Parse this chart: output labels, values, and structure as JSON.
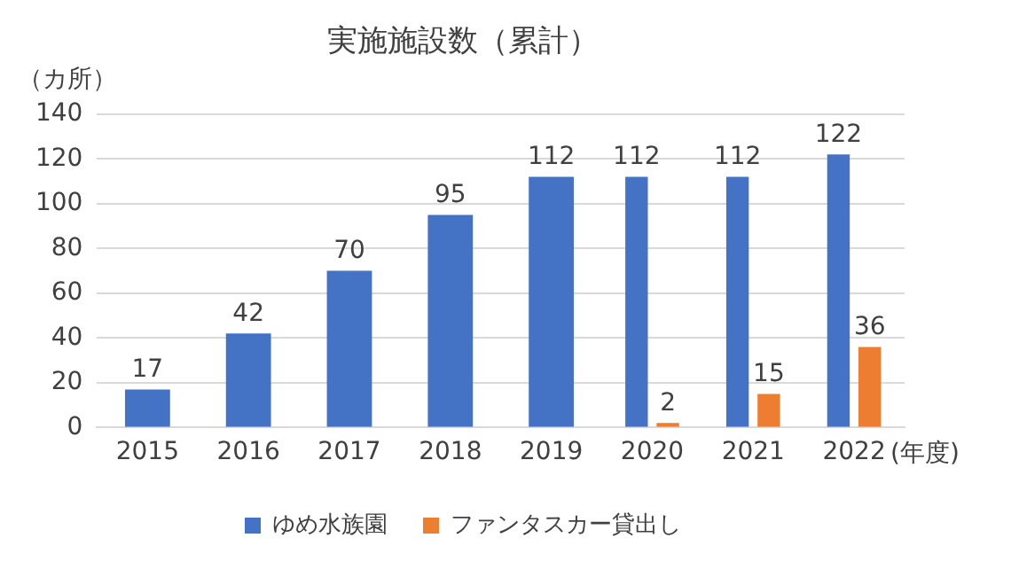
{
  "chart_data": {
    "type": "bar",
    "title": "実施施設数（累計）",
    "ylabel": "（カ所）",
    "xlabel": "(年度)",
    "categories": [
      "2015",
      "2016",
      "2017",
      "2018",
      "2019",
      "2020",
      "2021",
      "2022"
    ],
    "series": [
      {
        "name": "ゆめ水族園",
        "color": "#4472c4",
        "values": [
          17,
          42,
          70,
          95,
          112,
          112,
          112,
          122
        ]
      },
      {
        "name": "ファンタスカー貸出し",
        "color": "#ed7d31",
        "values": [
          null,
          null,
          null,
          null,
          null,
          2,
          15,
          36
        ]
      }
    ],
    "ylim": [
      0,
      140
    ],
    "yticks": [
      0,
      20,
      40,
      60,
      80,
      100,
      120,
      140
    ],
    "grid": "y",
    "legend": "bottom",
    "data_labels": true
  }
}
